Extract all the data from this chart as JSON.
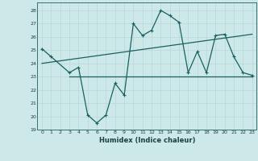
{
  "title": "",
  "xlabel": "Humidex (Indice chaleur)",
  "bg_color": "#cce8e8",
  "grid_color": "#b0d0d0",
  "line_color": "#1a6060",
  "xlim": [
    -0.5,
    23.5
  ],
  "ylim": [
    19,
    28.6
  ],
  "yticks": [
    19,
    20,
    21,
    22,
    23,
    24,
    25,
    26,
    27,
    28
  ],
  "xticks": [
    0,
    1,
    2,
    3,
    4,
    5,
    6,
    7,
    8,
    9,
    10,
    11,
    12,
    13,
    14,
    15,
    16,
    17,
    18,
    19,
    20,
    21,
    22,
    23
  ],
  "zigzag_x": [
    0,
    1,
    3,
    4,
    5,
    6,
    7,
    8,
    9,
    10,
    11,
    12,
    13,
    14,
    15,
    16,
    17,
    18,
    19,
    20,
    21,
    22,
    23
  ],
  "zigzag_y": [
    25.1,
    24.5,
    23.3,
    23.7,
    20.1,
    19.5,
    20.1,
    22.5,
    21.6,
    27.0,
    26.1,
    26.5,
    28.0,
    27.6,
    27.1,
    23.3,
    24.9,
    23.3,
    26.1,
    26.2,
    24.5,
    23.3,
    23.1
  ],
  "trend_x": [
    0,
    23
  ],
  "trend_y": [
    24.0,
    26.2
  ],
  "hline_y": 23.0,
  "hline_x_start": 3,
  "hline_x_end": 23,
  "xlabel_fontsize": 6,
  "tick_fontsize": 4.5
}
